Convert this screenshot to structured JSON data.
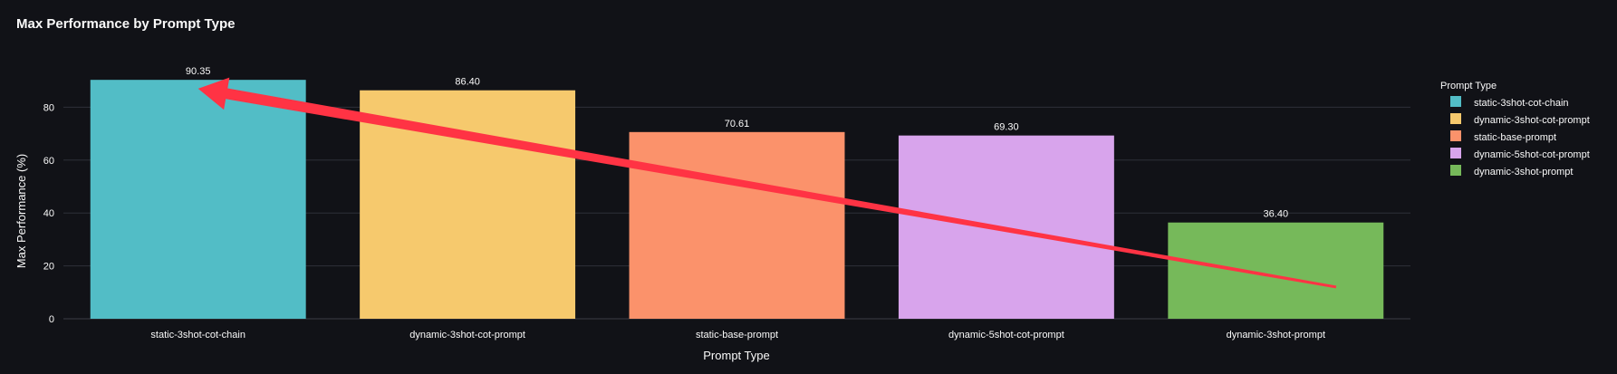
{
  "chart_data": {
    "type": "bar",
    "title": "Max Performance by Prompt Type",
    "xlabel": "Prompt Type",
    "ylabel": "Max Performance (%)",
    "ylim": [
      0,
      100
    ],
    "yticks": [
      0,
      20,
      40,
      60,
      80
    ],
    "grid": true,
    "categories": [
      "static-3shot-cot-chain",
      "dynamic-3shot-cot-prompt",
      "static-base-prompt",
      "dynamic-5shot-cot-prompt",
      "dynamic-3shot-prompt"
    ],
    "values": [
      90.35,
      86.4,
      70.61,
      69.3,
      36.4
    ],
    "value_labels": [
      "90.35",
      "86.40",
      "70.61",
      "69.30",
      "36.40"
    ],
    "colors": [
      "#52bdc6",
      "#f6c96d",
      "#fb926b",
      "#d8a4ec",
      "#76b95a"
    ],
    "legend": {
      "title": "Prompt Type",
      "placement": "right",
      "entries": [
        "static-3shot-cot-chain",
        "dynamic-3shot-cot-prompt",
        "static-base-prompt",
        "dynamic-5shot-cot-prompt",
        "dynamic-3shot-prompt"
      ]
    },
    "annotation": {
      "type": "arrow",
      "color": "#ff3344",
      "from": {
        "category_index": 4,
        "value": 12
      },
      "to": {
        "category_index": 0,
        "value": 86
      }
    }
  }
}
